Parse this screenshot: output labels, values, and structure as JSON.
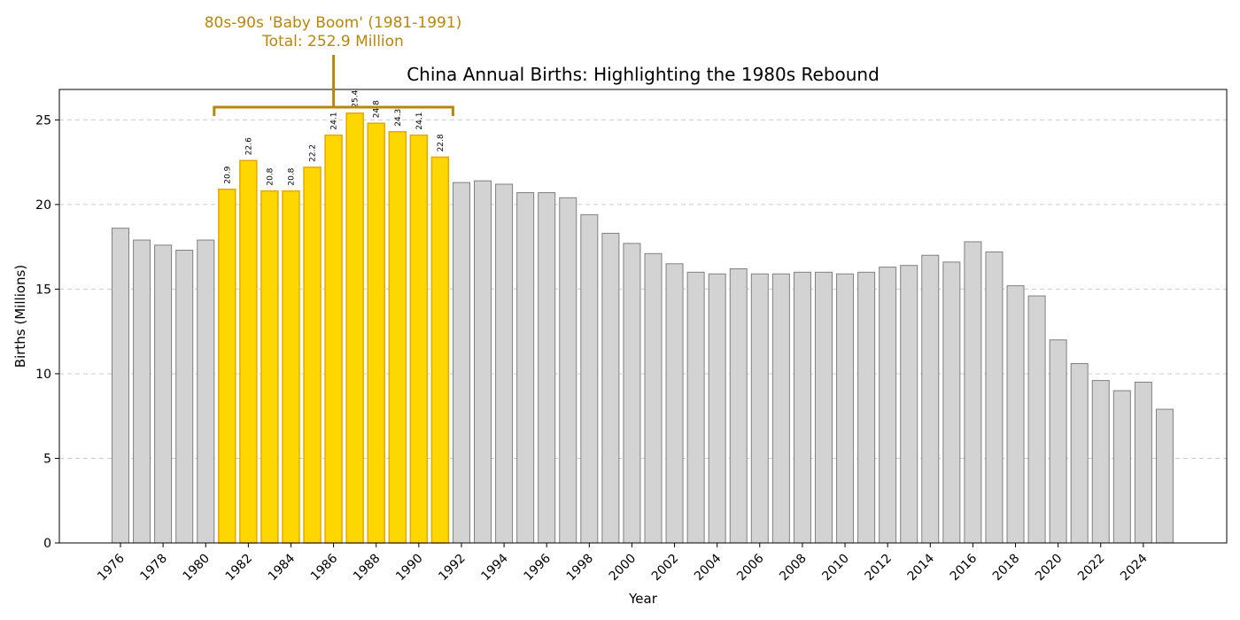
{
  "chart_data": {
    "type": "bar",
    "title": "China Annual Births: Highlighting the 1980s Rebound",
    "xlabel": "Year",
    "ylabel": "Births (Millions)",
    "ylim": [
      0,
      26.8
    ],
    "yticks": [
      0,
      5,
      10,
      15,
      20,
      25
    ],
    "xtick_years": [
      1976,
      1978,
      1980,
      1982,
      1984,
      1986,
      1988,
      1990,
      1992,
      1994,
      1996,
      1998,
      2000,
      2002,
      2004,
      2006,
      2008,
      2010,
      2012,
      2014,
      2016,
      2018,
      2020,
      2022,
      2024
    ],
    "grid": "horizontal dashed",
    "years": [
      1976,
      1977,
      1978,
      1979,
      1980,
      1981,
      1982,
      1983,
      1984,
      1985,
      1986,
      1987,
      1988,
      1989,
      1990,
      1991,
      1992,
      1993,
      1994,
      1995,
      1996,
      1997,
      1998,
      1999,
      2000,
      2001,
      2002,
      2003,
      2004,
      2005,
      2006,
      2007,
      2008,
      2009,
      2010,
      2011,
      2012,
      2013,
      2014,
      2015,
      2016,
      2017,
      2018,
      2019,
      2020,
      2021,
      2022,
      2023,
      2024,
      2025
    ],
    "values": [
      18.6,
      17.9,
      17.6,
      17.3,
      17.9,
      20.9,
      22.6,
      20.8,
      20.8,
      22.2,
      24.1,
      25.4,
      24.8,
      24.3,
      24.1,
      22.8,
      21.3,
      21.4,
      21.2,
      20.7,
      20.7,
      20.4,
      19.4,
      18.3,
      17.7,
      17.1,
      16.5,
      16.0,
      15.9,
      16.2,
      15.9,
      15.9,
      16.0,
      16.0,
      15.9,
      16.0,
      16.3,
      16.4,
      17.0,
      16.6,
      17.8,
      17.2,
      15.2,
      14.6,
      12.0,
      10.6,
      9.6,
      9.0,
      9.5,
      7.9
    ],
    "highlight": {
      "start_year": 1981,
      "end_year": 1991,
      "labels": [
        "20.9",
        "22.6",
        "20.8",
        "20.8",
        "22.2",
        "24.1",
        "25.4",
        "24.8",
        "24.3",
        "24.1",
        "22.8"
      ],
      "annotation_line1": "80s-90s 'Baby Boom' (1981-1991)",
      "annotation_line2": "Total: 252.9 Million",
      "color": "#ffd700",
      "edge_color": "#e6a800",
      "annotation_color": "#b8860b"
    },
    "base_color": "#d3d3d3",
    "base_edge_color": "#808080"
  }
}
